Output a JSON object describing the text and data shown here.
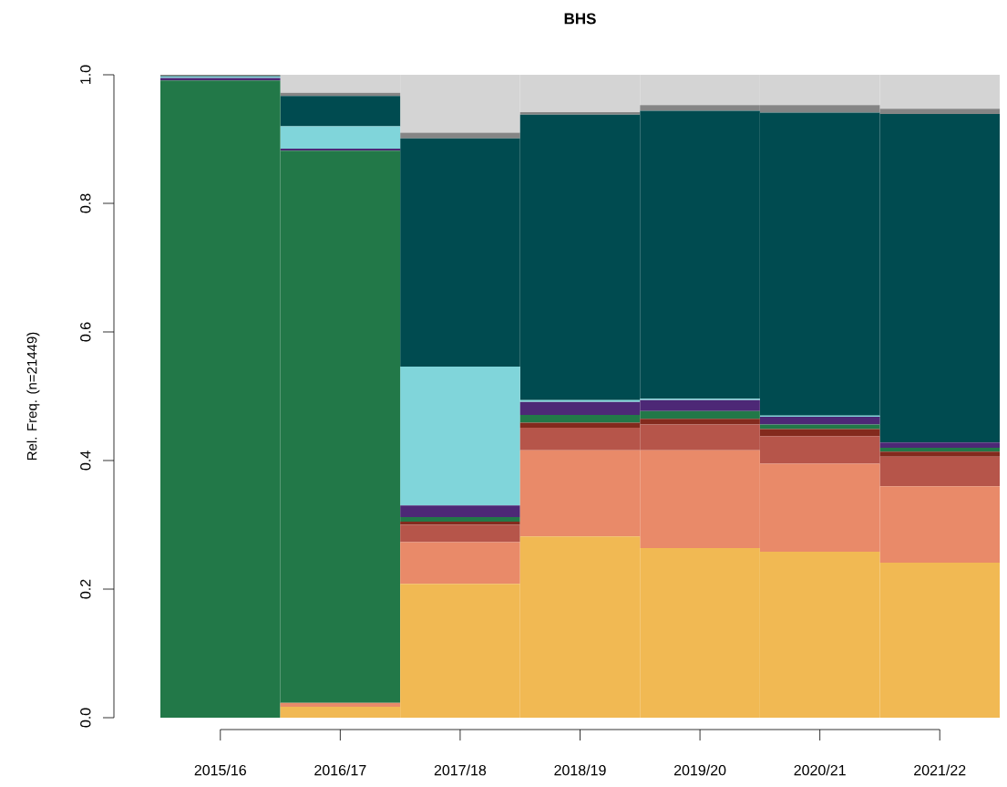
{
  "chart_data": {
    "type": "bar",
    "title": "BHS",
    "ylabel": "Rel. Freq. (n=21449)",
    "stacked": true,
    "categories": [
      "2015/16",
      "2016/17",
      "2017/18",
      "2018/19",
      "2019/20",
      "2020/21",
      "2021/22"
    ],
    "series": [
      {
        "color": "#f1b953",
        "values": [
          0,
          0.017,
          0.208,
          0.282,
          0.264,
          0.258,
          0.241
        ]
      },
      {
        "color": "#e98a69",
        "values": [
          0,
          0.006,
          0.065,
          0.134,
          0.152,
          0.137,
          0.119
        ]
      },
      {
        "color": "#b6554a",
        "values": [
          0,
          null,
          0.027,
          0.035,
          0.04,
          0.043,
          0.046
        ]
      },
      {
        "color": "#832a1d",
        "values": [
          0,
          0,
          0.005,
          0.008,
          0.009,
          0.011,
          0.008
        ]
      },
      {
        "color": "#227848",
        "values": [
          0.991,
          0.859,
          0.007,
          0.012,
          0.012,
          0.007,
          0.006
        ]
      },
      {
        "color": "#4d2876",
        "values": [
          0.004,
          0.003,
          0.018,
          0.02,
          0.017,
          0.012,
          0.008
        ]
      },
      {
        "color": "#80d5da",
        "values": [
          0.002,
          0.035,
          0.216,
          0.003,
          0.002,
          0.002,
          0
        ]
      },
      {
        "color": "#004b50",
        "values": [
          0.001,
          0.047,
          0.355,
          0.444,
          0.448,
          0.471,
          0.511
        ]
      },
      {
        "color": "#858585",
        "values": [
          0.002,
          0.005,
          0.009,
          0.004,
          0.009,
          0.012,
          0.008
        ]
      },
      {
        "color": "#d4d4d4",
        "values": [
          null,
          0.028,
          0.09,
          0.058,
          0.047,
          0.047,
          0.053
        ]
      }
    ],
    "ylim": [
      0,
      1
    ],
    "yticks": [
      {
        "value": 0,
        "label": "0.0"
      },
      {
        "value": 0.2,
        "label": "0.2"
      },
      {
        "value": 0.4,
        "label": "0.4"
      },
      {
        "value": 0.6,
        "label": "0.6"
      },
      {
        "value": 0.8,
        "label": "0.8"
      },
      {
        "value": 1,
        "label": "1.0"
      }
    ]
  }
}
